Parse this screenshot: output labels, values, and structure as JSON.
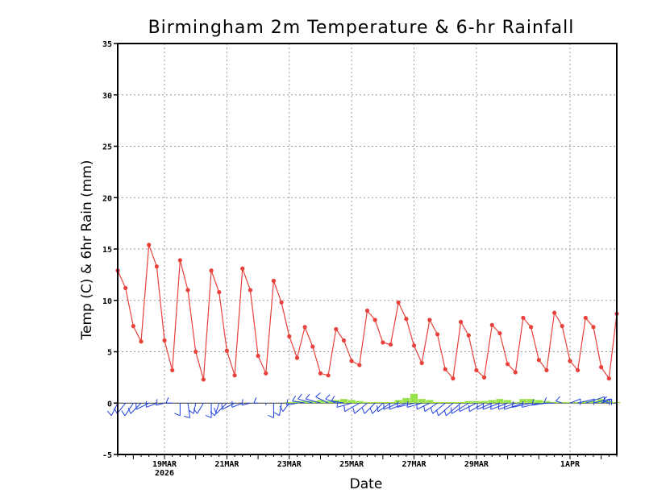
{
  "chart_data": {
    "type": "line",
    "title": "Birmingham 2m Temperature & 6-hr Rainfall",
    "xlabel": "Date",
    "ylabel": "Temp (C) & 6hr Rain (mm)",
    "ylim": [
      -5,
      35
    ],
    "yticks": [
      -5,
      0,
      5,
      10,
      15,
      20,
      25,
      30,
      35
    ],
    "xlim": [
      0,
      64
    ],
    "grid": true,
    "xticks": [
      {
        "pos": 6,
        "label": "19MAR",
        "sublabel": "2026"
      },
      {
        "pos": 14,
        "label": "21MAR"
      },
      {
        "pos": 22,
        "label": "23MAR"
      },
      {
        "pos": 30,
        "label": "25MAR"
      },
      {
        "pos": 38,
        "label": "27MAR"
      },
      {
        "pos": 46,
        "label": "29MAR"
      },
      {
        "pos": 58,
        "label": "1APR"
      }
    ],
    "series": [
      {
        "name": "2m Temperature",
        "color": "#e8403a",
        "values": [
          12.9,
          11.2,
          7.5,
          6.0,
          15.4,
          13.3,
          6.1,
          3.2,
          13.9,
          11.0,
          5.0,
          2.3,
          12.9,
          10.8,
          5.1,
          2.7,
          13.1,
          11.0,
          4.6,
          2.9,
          11.9,
          9.8,
          6.5,
          4.4,
          7.4,
          5.5,
          2.9,
          2.7,
          7.2,
          6.1,
          4.1,
          3.7,
          9.0,
          8.1,
          5.9,
          5.7,
          9.8,
          8.2,
          5.6,
          3.9,
          8.1,
          6.7,
          3.3,
          2.4,
          7.9,
          6.6,
          3.2,
          2.5,
          7.6,
          6.8,
          3.8,
          3.0,
          8.3,
          7.4,
          4.2,
          3.2,
          8.8,
          7.5,
          4.1,
          3.2,
          8.3,
          7.4,
          3.5,
          2.4,
          8.7
        ]
      },
      {
        "name": "6-hr Rainfall",
        "type": "bar",
        "color": "#99e34a",
        "values": [
          0,
          0,
          0,
          0,
          0,
          0,
          0,
          0,
          0,
          0,
          0,
          0,
          0,
          0,
          0,
          0,
          0,
          0,
          0,
          0,
          0,
          0,
          0.1,
          0.2,
          0.2,
          0.2,
          0.3,
          0.2,
          0.3,
          0.4,
          0.3,
          0.2,
          0.1,
          0.1,
          0.1,
          0.1,
          0.3,
          0.5,
          0.9,
          0.4,
          0.3,
          0.1,
          0.1,
          0.1,
          0.1,
          0.2,
          0.2,
          0.2,
          0.3,
          0.4,
          0.3,
          0.1,
          0.4,
          0.4,
          0.3,
          0.2,
          0.1,
          0.1,
          0.1,
          0.1,
          0.2,
          0.2,
          0.4,
          0.2,
          0.1
        ]
      }
    ],
    "wind_barbs": {
      "name": "Wind",
      "color": "#1f3fe0",
      "u": [
        -3,
        -4,
        -4,
        -5,
        -6,
        -5,
        -4,
        -3,
        0,
        1,
        -1,
        -3,
        0,
        -2,
        -5,
        -6,
        -5,
        -4,
        -2,
        0,
        0,
        -1,
        -3,
        -5,
        -6,
        -7,
        -7,
        -6,
        -5,
        -6,
        -7,
        -7,
        -6,
        -5,
        -5,
        -6,
        -7,
        -8,
        -8,
        -7,
        -6,
        -6,
        -6,
        -7,
        -7,
        -8,
        -8,
        -7,
        -7,
        -8,
        -8,
        -8,
        -9,
        -9,
        -8,
        -7,
        -5,
        -3,
        5,
        8,
        9,
        8,
        5,
        -3,
        -1
      ],
      "v": [
        -6,
        -5,
        -6,
        -5,
        -3,
        -2,
        -1,
        0,
        -6,
        -7,
        -5,
        -5,
        -7,
        -6,
        -5,
        -3,
        -2,
        -1,
        0,
        -1,
        -7,
        -6,
        -4,
        -1,
        1,
        2,
        2,
        3,
        2,
        1,
        -2,
        -4,
        -5,
        -5,
        -5,
        -4,
        -3,
        -3,
        -2,
        -2,
        -3,
        -4,
        -5,
        -6,
        -6,
        -5,
        -4,
        -4,
        -3,
        -3,
        -3,
        -3,
        -3,
        -2,
        -2,
        -1,
        0,
        1,
        2,
        2,
        3,
        2,
        2,
        1,
        0
      ]
    }
  }
}
